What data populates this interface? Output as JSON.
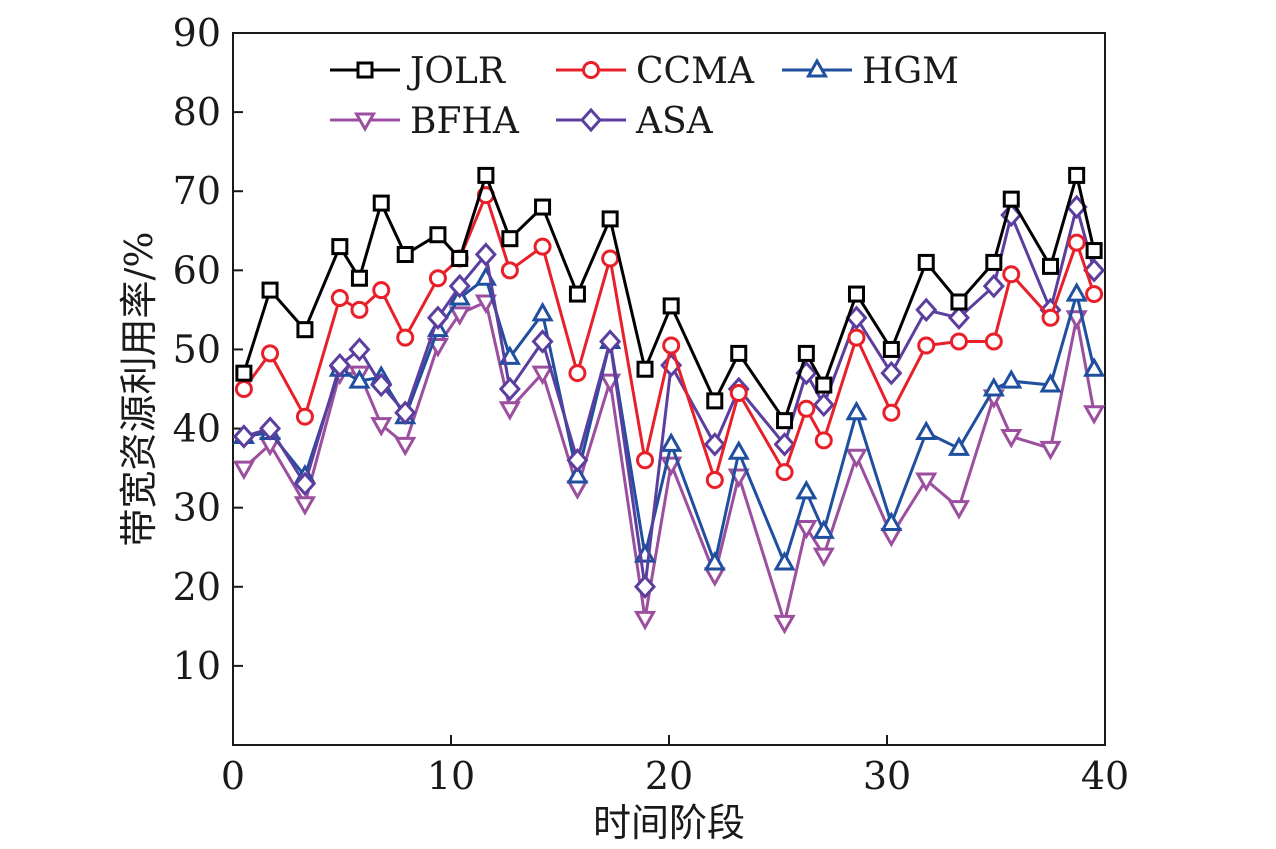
{
  "chart_data": {
    "type": "line",
    "xlabel": "时间阶段",
    "ylabel": "带宽资源利用率/%",
    "xlim": [
      0,
      40
    ],
    "ylim": [
      0,
      90
    ],
    "xticks": [
      0,
      10,
      20,
      30,
      40
    ],
    "yticks": [
      10,
      20,
      30,
      40,
      50,
      60,
      70,
      80,
      90
    ],
    "grid": false,
    "legend_position": "top",
    "x": [
      0.5,
      1.5,
      2.5,
      3.5,
      4.5,
      5.5,
      6.5,
      7.5,
      8.5,
      9.5,
      10.5,
      11.5,
      12.5,
      13.5,
      14.5,
      15.5,
      16.5,
      17.5,
      18.5,
      19.5,
      20.5,
      21.5,
      22.5,
      23.5,
      24.5,
      25.5,
      26.5,
      27.5,
      28.5,
      29.5,
      30.5,
      31.5,
      32.5,
      33.5,
      34.5,
      35.5,
      36.5,
      37.5,
      38.5,
      39.5,
      40
    ],
    "series": [
      {
        "name": "JOLR",
        "color": "#000000",
        "marker": "square",
        "points": [
          [
            0.5,
            47
          ],
          [
            1.7,
            57.5
          ],
          [
            3.3,
            52.5
          ],
          [
            4.9,
            63
          ],
          [
            5.8,
            59
          ],
          [
            6.8,
            68.5
          ],
          [
            7.9,
            62
          ],
          [
            9.4,
            64.5
          ],
          [
            10.4,
            61.5
          ],
          [
            11.6,
            72
          ],
          [
            12.7,
            64
          ],
          [
            14.2,
            68
          ],
          [
            15.8,
            57
          ],
          [
            17.3,
            66.5
          ],
          [
            18.9,
            47.5
          ],
          [
            20.1,
            55.5
          ],
          [
            22.1,
            43.5
          ],
          [
            23.2,
            49.5
          ],
          [
            25.3,
            41
          ],
          [
            26.3,
            49.5
          ],
          [
            27.1,
            45.5
          ],
          [
            28.6,
            57
          ],
          [
            30.2,
            50
          ],
          [
            31.8,
            61
          ],
          [
            33.3,
            56
          ],
          [
            34.9,
            61
          ],
          [
            35.7,
            69
          ],
          [
            37.5,
            60.5
          ],
          [
            38.7,
            72
          ],
          [
            39.5,
            62.5
          ]
        ]
      },
      {
        "name": "CCMA",
        "color": "#e8202a",
        "marker": "circle",
        "points": [
          [
            0.5,
            45
          ],
          [
            1.7,
            49.5
          ],
          [
            3.3,
            41.5
          ],
          [
            4.9,
            56.5
          ],
          [
            5.8,
            55
          ],
          [
            6.8,
            57.5
          ],
          [
            7.9,
            51.5
          ],
          [
            9.4,
            59
          ],
          [
            10.4,
            61.5
          ],
          [
            11.6,
            69.5
          ],
          [
            12.7,
            60
          ],
          [
            14.2,
            63
          ],
          [
            15.8,
            47
          ],
          [
            17.3,
            61.5
          ],
          [
            18.9,
            36
          ],
          [
            20.1,
            50.5
          ],
          [
            22.1,
            33.5
          ],
          [
            23.2,
            44.5
          ],
          [
            25.3,
            34.5
          ],
          [
            26.3,
            42.5
          ],
          [
            27.1,
            38.5
          ],
          [
            28.6,
            51.5
          ],
          [
            30.2,
            42
          ],
          [
            31.8,
            50.5
          ],
          [
            33.3,
            51
          ],
          [
            34.9,
            51
          ],
          [
            35.7,
            59.5
          ],
          [
            37.5,
            54
          ],
          [
            38.7,
            63.5
          ],
          [
            39.5,
            57
          ]
        ]
      },
      {
        "name": "HGM",
        "color": "#1f4f9e",
        "marker": "triangle-up",
        "points": [
          [
            0.5,
            39
          ],
          [
            1.7,
            39.5
          ],
          [
            3.3,
            34
          ],
          [
            4.9,
            47.5
          ],
          [
            5.8,
            46
          ],
          [
            6.8,
            46.5
          ],
          [
            7.9,
            41.5
          ],
          [
            9.4,
            52.5
          ],
          [
            10.4,
            56.5
          ],
          [
            11.6,
            59
          ],
          [
            12.7,
            49
          ],
          [
            14.2,
            54.5
          ],
          [
            15.8,
            34
          ],
          [
            17.3,
            51
          ],
          [
            18.9,
            24
          ],
          [
            20.1,
            38
          ],
          [
            22.1,
            23
          ],
          [
            23.2,
            37
          ],
          [
            25.3,
            23
          ],
          [
            26.3,
            32
          ],
          [
            27.1,
            27
          ],
          [
            28.6,
            42
          ],
          [
            30.2,
            28
          ],
          [
            31.8,
            39.5
          ],
          [
            33.3,
            37.5
          ],
          [
            34.9,
            45
          ],
          [
            35.7,
            46
          ],
          [
            37.5,
            45.5
          ],
          [
            38.7,
            57
          ],
          [
            39.5,
            47.5
          ]
        ]
      },
      {
        "name": "BFHA",
        "color": "#9b4f9e",
        "marker": "triangle-down",
        "points": [
          [
            0.5,
            35
          ],
          [
            1.7,
            38
          ],
          [
            3.3,
            30.5
          ],
          [
            4.9,
            47
          ],
          [
            5.8,
            47
          ],
          [
            6.8,
            40.5
          ],
          [
            7.9,
            38
          ],
          [
            9.4,
            50.5
          ],
          [
            10.4,
            54.5
          ],
          [
            11.6,
            56
          ],
          [
            12.7,
            42.5
          ],
          [
            14.2,
            47
          ],
          [
            15.8,
            32.5
          ],
          [
            17.3,
            46
          ],
          [
            18.9,
            16
          ],
          [
            20.1,
            35.5
          ],
          [
            22.1,
            21.5
          ],
          [
            23.2,
            34
          ],
          [
            25.3,
            15.5
          ],
          [
            26.3,
            27.5
          ],
          [
            27.1,
            24
          ],
          [
            28.6,
            36.5
          ],
          [
            30.2,
            26.5
          ],
          [
            31.8,
            33.5
          ],
          [
            33.3,
            30
          ],
          [
            34.9,
            44
          ],
          [
            35.7,
            39
          ],
          [
            37.5,
            37.5
          ],
          [
            38.7,
            54
          ],
          [
            39.5,
            42
          ]
        ]
      },
      {
        "name": "ASA",
        "color": "#5b3e9e",
        "marker": "diamond",
        "points": [
          [
            0.5,
            39
          ],
          [
            1.7,
            40
          ],
          [
            3.3,
            33
          ],
          [
            4.9,
            48
          ],
          [
            5.8,
            50
          ],
          [
            6.8,
            45.5
          ],
          [
            7.9,
            42
          ],
          [
            9.4,
            54
          ],
          [
            10.4,
            58
          ],
          [
            11.6,
            62
          ],
          [
            12.7,
            45
          ],
          [
            14.2,
            51
          ],
          [
            15.8,
            36
          ],
          [
            17.3,
            51
          ],
          [
            18.9,
            20
          ],
          [
            20.1,
            48
          ],
          [
            22.1,
            38
          ],
          [
            23.2,
            45
          ],
          [
            25.3,
            38
          ],
          [
            26.3,
            47
          ],
          [
            27.1,
            43
          ],
          [
            28.6,
            54
          ],
          [
            30.2,
            47
          ],
          [
            31.8,
            55
          ],
          [
            33.3,
            54
          ],
          [
            34.9,
            58
          ],
          [
            35.7,
            67
          ],
          [
            37.5,
            55
          ],
          [
            38.7,
            68
          ],
          [
            39.5,
            60
          ]
        ]
      }
    ]
  }
}
